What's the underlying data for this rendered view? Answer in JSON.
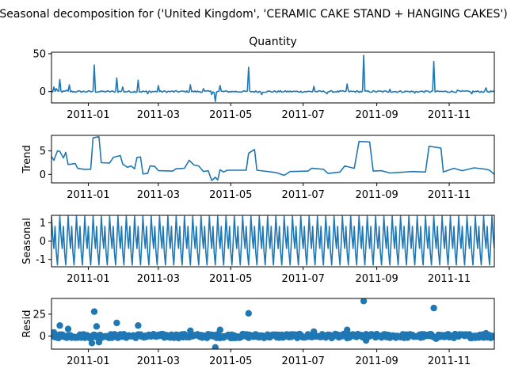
{
  "figure": {
    "suptitle": "Seasonal decomposition for ('United Kingdom', 'CERAMIC CAKE STAND + HANGING CAKES')"
  },
  "colors": {
    "series": "#1f77b4",
    "axis": "#000000",
    "background": "#ffffff"
  },
  "chart_data": [
    {
      "type": "line",
      "title": "Quantity",
      "ylabel": "",
      "xlim": [
        "2010-12-01",
        "2011-12-09"
      ],
      "ylim": [
        -15,
        52
      ],
      "yticks": [
        0,
        50
      ],
      "xticks": [
        "2011-01",
        "2011-03",
        "2011-05",
        "2011-07",
        "2011-09",
        "2011-11"
      ],
      "baseline": 0,
      "spikes": [
        {
          "date": "2010-12-03",
          "value": 6
        },
        {
          "date": "2010-12-05",
          "value": 4
        },
        {
          "date": "2010-12-08",
          "value": 16
        },
        {
          "date": "2010-12-14",
          "value": 2
        },
        {
          "date": "2010-12-16",
          "value": 9
        },
        {
          "date": "2011-01-06",
          "value": 35
        },
        {
          "date": "2011-01-25",
          "value": 18
        },
        {
          "date": "2011-01-30",
          "value": 6
        },
        {
          "date": "2011-02-12",
          "value": 15
        },
        {
          "date": "2011-02-20",
          "value": -3
        },
        {
          "date": "2011-03-01",
          "value": 8
        },
        {
          "date": "2011-03-28",
          "value": 9
        },
        {
          "date": "2011-04-08",
          "value": 4
        },
        {
          "date": "2011-04-15",
          "value": -4
        },
        {
          "date": "2011-04-18",
          "value": -13
        },
        {
          "date": "2011-04-22",
          "value": 8
        },
        {
          "date": "2011-05-16",
          "value": 32
        },
        {
          "date": "2011-05-27",
          "value": -4
        },
        {
          "date": "2011-07-10",
          "value": 7
        },
        {
          "date": "2011-07-21",
          "value": -3
        },
        {
          "date": "2011-08-07",
          "value": 10
        },
        {
          "date": "2011-08-21",
          "value": 48
        },
        {
          "date": "2011-09-12",
          "value": 3
        },
        {
          "date": "2011-10-03",
          "value": -2
        },
        {
          "date": "2011-10-19",
          "value": 40
        },
        {
          "date": "2011-11-08",
          "value": 2
        },
        {
          "date": "2011-11-20",
          "value": -3
        },
        {
          "date": "2011-12-02",
          "value": 5
        }
      ]
    },
    {
      "type": "line",
      "title": "",
      "ylabel": "Trend",
      "xlim": [
        "2010-12-01",
        "2011-12-09"
      ],
      "ylim": [
        -1.8,
        8.3
      ],
      "yticks": [
        0,
        5
      ],
      "xticks": [
        "2011-01",
        "2011-03",
        "2011-05",
        "2011-07",
        "2011-09",
        "2011-11"
      ],
      "points": [
        [
          "2010-12-01",
          3.8
        ],
        [
          "2010-12-03",
          3.0
        ],
        [
          "2010-12-06",
          5.0
        ],
        [
          "2010-12-08",
          4.9
        ],
        [
          "2010-12-11",
          3.5
        ],
        [
          "2010-12-13",
          4.7
        ],
        [
          "2010-12-15",
          2.1
        ],
        [
          "2010-12-21",
          2.3
        ],
        [
          "2010-12-23",
          1.3
        ],
        [
          "2010-12-28",
          1.1
        ],
        [
          "2011-01-03",
          1.1
        ],
        [
          "2011-01-05",
          7.8
        ],
        [
          "2011-01-10",
          8.0
        ],
        [
          "2011-01-12",
          2.5
        ],
        [
          "2011-01-19",
          2.4
        ],
        [
          "2011-01-22",
          3.6
        ],
        [
          "2011-01-28",
          4.0
        ],
        [
          "2011-01-30",
          2.2
        ],
        [
          "2011-02-03",
          1.5
        ],
        [
          "2011-02-06",
          1.8
        ],
        [
          "2011-02-09",
          1.2
        ],
        [
          "2011-02-11",
          3.6
        ],
        [
          "2011-02-14",
          3.7
        ],
        [
          "2011-02-16",
          0.1
        ],
        [
          "2011-02-20",
          0.2
        ],
        [
          "2011-02-22",
          1.8
        ],
        [
          "2011-02-26",
          1.7
        ],
        [
          "2011-03-01",
          0.8
        ],
        [
          "2011-03-13",
          0.7
        ],
        [
          "2011-03-16",
          1.2
        ],
        [
          "2011-03-23",
          1.3
        ],
        [
          "2011-03-27",
          3.0
        ],
        [
          "2011-03-31",
          2.0
        ],
        [
          "2011-04-04",
          1.8
        ],
        [
          "2011-04-08",
          0.6
        ],
        [
          "2011-04-12",
          0.8
        ],
        [
          "2011-04-15",
          -1.3
        ],
        [
          "2011-04-18",
          -0.6
        ],
        [
          "2011-04-20",
          -1.2
        ],
        [
          "2011-04-22",
          1.0
        ],
        [
          "2011-04-25",
          0.5
        ],
        [
          "2011-04-28",
          0.9
        ],
        [
          "2011-05-14",
          0.9
        ],
        [
          "2011-05-16",
          4.5
        ],
        [
          "2011-05-21",
          5.3
        ],
        [
          "2011-05-23",
          0.9
        ],
        [
          "2011-06-08",
          0.4
        ],
        [
          "2011-06-15",
          -0.2
        ],
        [
          "2011-06-20",
          0.6
        ],
        [
          "2011-07-05",
          0.7
        ],
        [
          "2011-07-08",
          1.3
        ],
        [
          "2011-07-18",
          1.1
        ],
        [
          "2011-07-22",
          0.2
        ],
        [
          "2011-08-01",
          0.5
        ],
        [
          "2011-08-05",
          1.8
        ],
        [
          "2011-08-13",
          1.3
        ],
        [
          "2011-08-17",
          7.0
        ],
        [
          "2011-08-26",
          6.9
        ],
        [
          "2011-08-29",
          0.7
        ],
        [
          "2011-09-05",
          0.8
        ],
        [
          "2011-09-12",
          0.3
        ],
        [
          "2011-10-01",
          0.6
        ],
        [
          "2011-10-12",
          0.5
        ],
        [
          "2011-10-15",
          6.0
        ],
        [
          "2011-10-25",
          5.6
        ],
        [
          "2011-10-27",
          0.5
        ],
        [
          "2011-11-05",
          1.3
        ],
        [
          "2011-11-12",
          0.8
        ],
        [
          "2011-11-22",
          1.4
        ],
        [
          "2011-12-02",
          1.1
        ],
        [
          "2011-12-05",
          0.9
        ],
        [
          "2011-12-09",
          0.0
        ]
      ]
    },
    {
      "type": "line",
      "title": "",
      "ylabel": "Seasonal",
      "xlim": [
        "2010-12-01",
        "2011-12-09"
      ],
      "ylim": [
        -1.4,
        1.4
      ],
      "yticks": [
        -1,
        0,
        1
      ],
      "xticks": [
        "2011-01",
        "2011-03",
        "2011-05",
        "2011-07",
        "2011-09",
        "2011-11"
      ],
      "period_days": 7,
      "weekly_pattern": [
        1.35,
        0.3,
        -0.4,
        0.8,
        -0.6,
        -1.3,
        -0.1
      ]
    },
    {
      "type": "scatter",
      "title": "",
      "ylabel": "Resid",
      "xlim": [
        "2010-12-01",
        "2011-12-09"
      ],
      "ylim": [
        -15,
        43
      ],
      "yticks": [
        0,
        25
      ],
      "xticks": [
        "2011-01",
        "2011-03",
        "2011-05",
        "2011-07",
        "2011-09",
        "2011-11"
      ],
      "outliers": [
        {
          "date": "2010-12-03",
          "value": 4
        },
        {
          "date": "2010-12-08",
          "value": 12
        },
        {
          "date": "2010-12-15",
          "value": 8
        },
        {
          "date": "2011-01-06",
          "value": 28
        },
        {
          "date": "2011-01-08",
          "value": 11
        },
        {
          "date": "2011-01-04",
          "value": -8
        },
        {
          "date": "2011-01-10",
          "value": -7
        },
        {
          "date": "2011-01-25",
          "value": 15
        },
        {
          "date": "2011-02-12",
          "value": 12
        },
        {
          "date": "2011-03-28",
          "value": 6
        },
        {
          "date": "2011-04-18",
          "value": -13
        },
        {
          "date": "2011-04-22",
          "value": 7
        },
        {
          "date": "2011-05-16",
          "value": 26
        },
        {
          "date": "2011-07-10",
          "value": 5
        },
        {
          "date": "2011-08-07",
          "value": 7
        },
        {
          "date": "2011-08-21",
          "value": 40
        },
        {
          "date": "2011-08-23",
          "value": -5
        },
        {
          "date": "2011-10-19",
          "value": 32
        },
        {
          "date": "2011-10-21",
          "value": -3
        },
        {
          "date": "2011-12-02",
          "value": 3
        }
      ]
    }
  ]
}
